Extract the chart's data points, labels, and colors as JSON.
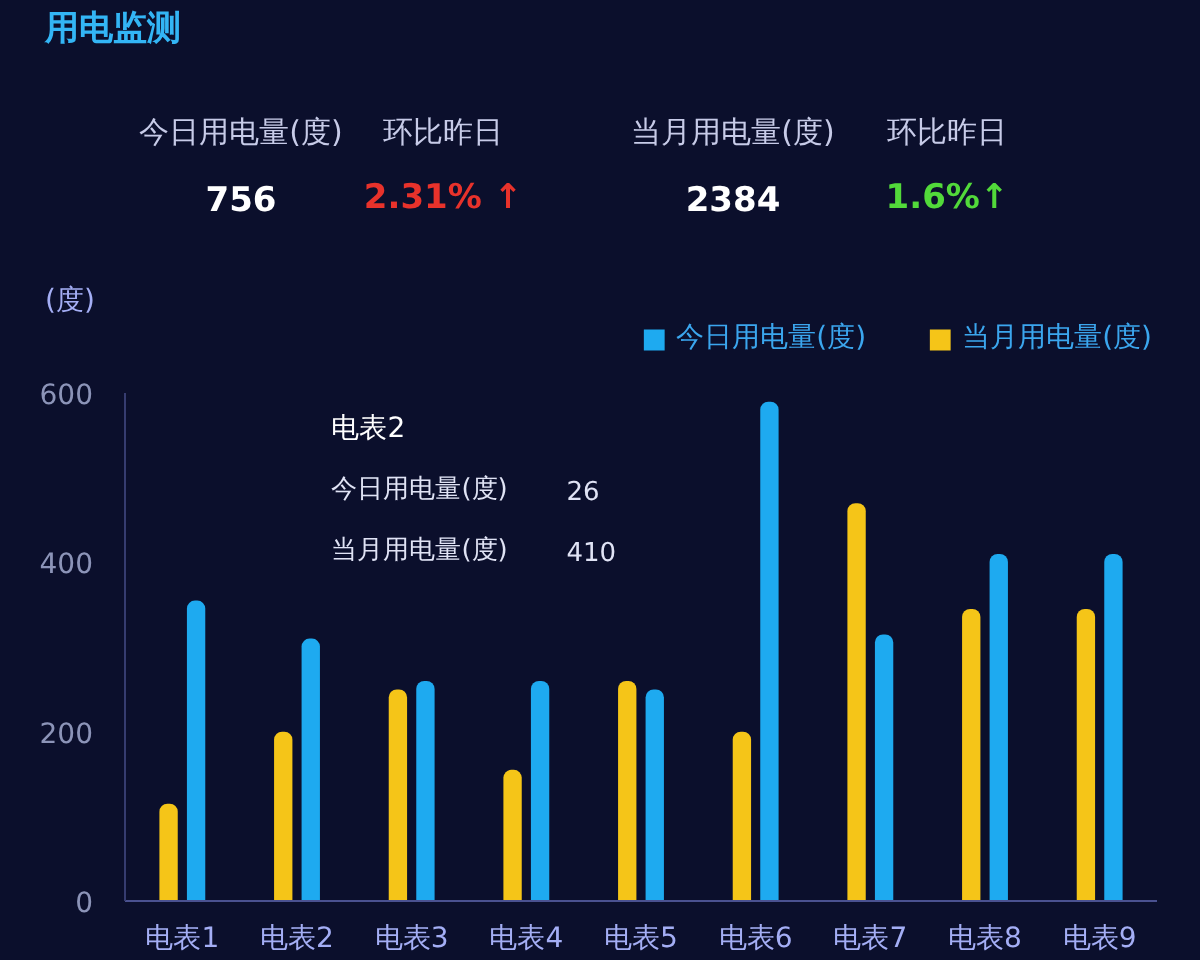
{
  "chart_data": [
    {
      "type": "other",
      "title": "用电监测",
      "annotations": [
        "今日用电量(度)",
        "756",
        "环比昨日",
        "2.31% ↑",
        "当月用电量(度)",
        "2384",
        "环比昨日",
        "1.6%↑"
      ]
    },
    {
      "type": "bar",
      "ylabel": "(度)",
      "categories": [
        "电表1",
        "电表2",
        "电表3",
        "电表4",
        "电表5",
        "电表6",
        "电表7",
        "电表8",
        "电表9"
      ],
      "series": [
        {
          "name": "今日用电量(度)",
          "color": "#1eaaf0",
          "values": [
            355,
            310,
            260,
            260,
            250,
            590,
            315,
            410,
            410
          ]
        },
        {
          "name": "当月用电量(度)",
          "color": "#f5c518",
          "values": [
            115,
            200,
            250,
            155,
            260,
            200,
            470,
            345,
            345
          ]
        }
      ],
      "ylim": [
        0,
        600
      ],
      "yticks": [
        0,
        200,
        400,
        600
      ],
      "grid": false,
      "legend": "top right",
      "annotations": [
        "电表2",
        "今日用电量(度)",
        "26",
        "当月用电量(度)",
        "410"
      ]
    }
  ]
}
